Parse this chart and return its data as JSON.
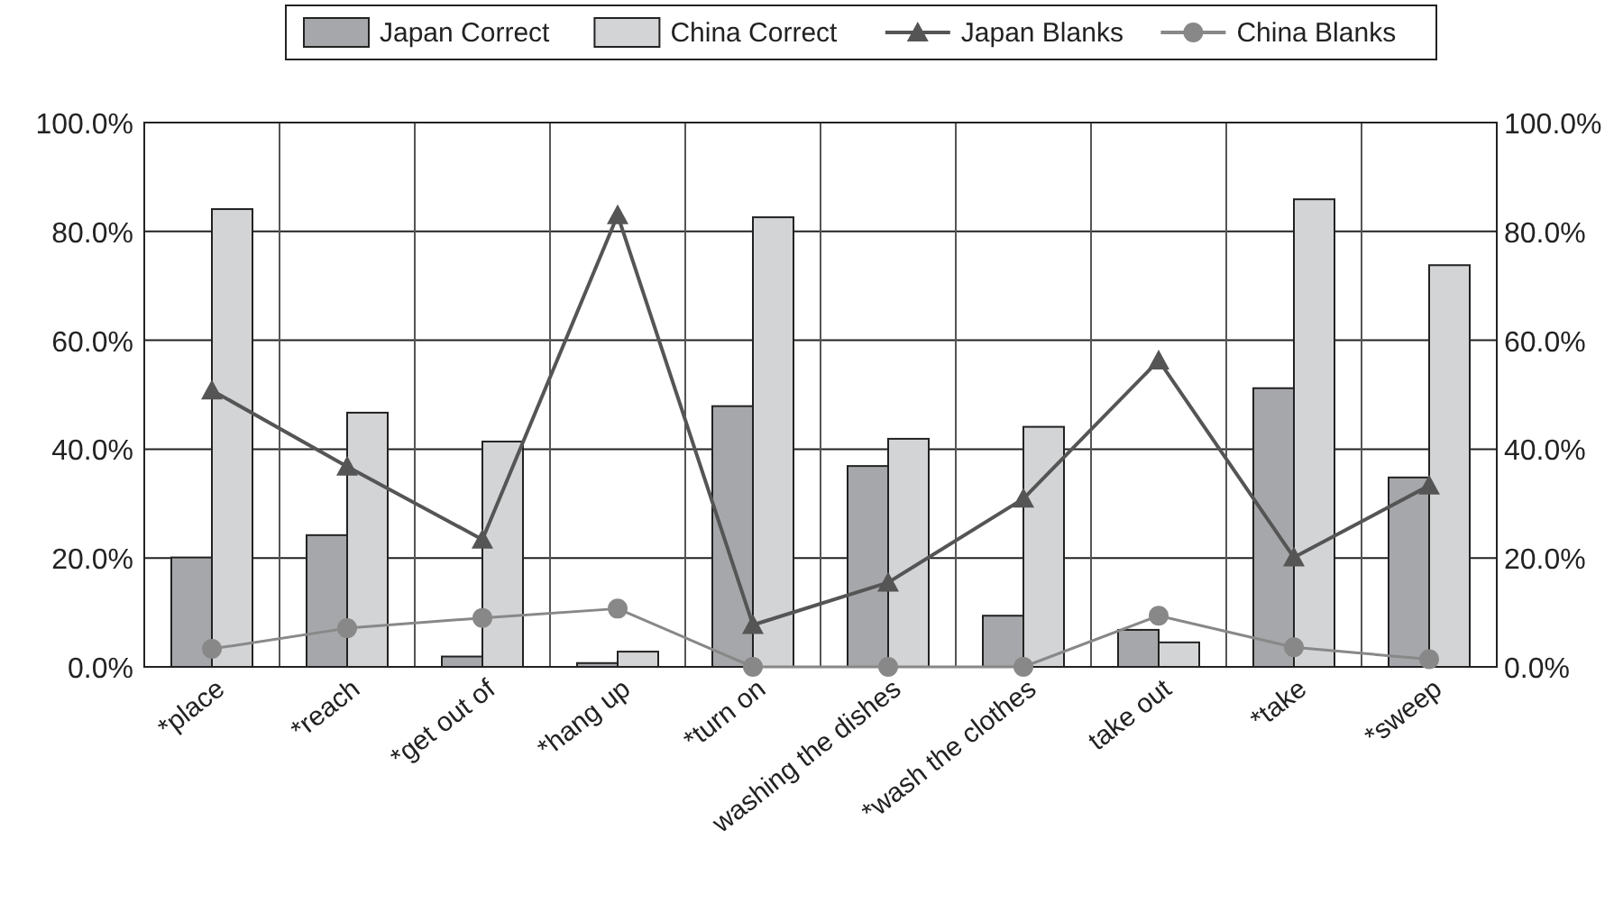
{
  "chart_data": {
    "type": "bar",
    "categories": [
      "*place",
      "*reach",
      "*get out of",
      "*hang up",
      "*turn on",
      "washing the dishes",
      "*wash the clothes",
      "take out",
      "*take",
      "*sweep"
    ],
    "series": [
      {
        "name": "Japan Correct",
        "color": "#a6a7aa",
        "values": [
          20.1,
          24.2,
          1.9,
          0.7,
          47.9,
          36.9,
          9.4,
          6.8,
          51.2,
          34.8
        ]
      },
      {
        "name": "China Correct",
        "color": "#d3d4d6",
        "values": [
          84.1,
          46.7,
          41.4,
          2.8,
          82.6,
          41.9,
          44.1,
          4.5,
          85.9,
          73.8
        ]
      },
      {
        "name": "Japan Blanks",
        "type": "line",
        "marker": "triangle",
        "color": "#555555",
        "values": [
          50.8,
          36.8,
          23.4,
          83.0,
          7.7,
          15.5,
          30.9,
          56.3,
          20.1,
          33.3
        ]
      },
      {
        "name": "China Blanks",
        "type": "line",
        "marker": "circle",
        "color": "#888888",
        "values": [
          3.3,
          7.1,
          9.0,
          10.7,
          0,
          0,
          0,
          9.4,
          3.6,
          1.4
        ]
      }
    ],
    "ylim": [
      0,
      100
    ],
    "yticks": [
      {
        "value": 0,
        "label": "0.0%"
      },
      {
        "value": 20,
        "label": "20.0%"
      },
      {
        "value": 40,
        "label": "40.0%"
      },
      {
        "value": 60,
        "label": "60.0%"
      },
      {
        "value": 80,
        "label": "80.0%"
      },
      {
        "value": 100,
        "label": "100.0%"
      }
    ],
    "y2lim": [
      0,
      100
    ],
    "y2ticks": [
      {
        "value": 0,
        "label": "0.0%"
      },
      {
        "value": 20,
        "label": "20.0%"
      },
      {
        "value": 40,
        "label": "40.0%"
      },
      {
        "value": 60,
        "label": "60.0%"
      },
      {
        "value": 80,
        "label": "80.0%"
      },
      {
        "value": 100,
        "label": "100.0%"
      }
    ],
    "grid": true,
    "legend": "top"
  }
}
